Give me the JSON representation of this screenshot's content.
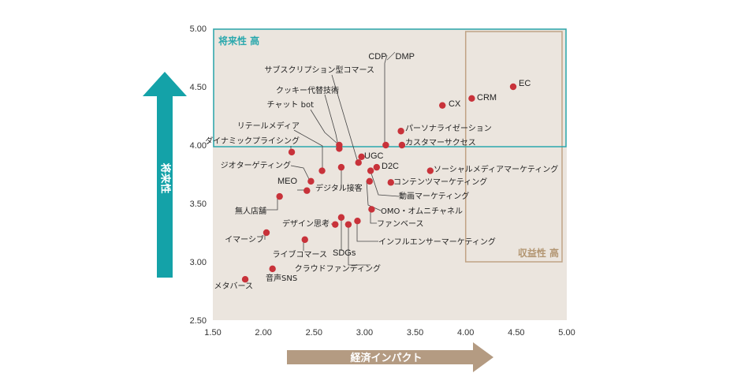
{
  "chart_data": {
    "type": "scatter",
    "xlabel": "経済インパクト",
    "ylabel": "将来性",
    "xlim": [
      1.5,
      5.0
    ],
    "ylim": [
      2.5,
      5.0
    ],
    "xticks": [
      "1.50",
      "2.00",
      "2.50",
      "3.00",
      "3.50",
      "4.00",
      "4.50",
      "5.00"
    ],
    "yticks": [
      "2.50",
      "3.00",
      "3.50",
      "4.00",
      "4.50",
      "5.00"
    ],
    "grid": false,
    "colors": {
      "point": "#c8323a",
      "plot_bg": "#ebe5de",
      "future_box": "#2aa8ad",
      "revenue_box": "#c0a385",
      "y_arrow": "#14a2a8",
      "x_arrow": "#b49b82"
    },
    "regions": [
      {
        "label": "将来性 高",
        "x_range": [
          1.5,
          5.0
        ],
        "y_range": [
          4.0,
          5.0
        ]
      },
      {
        "label": "収益性 高",
        "x_range": [
          4.0,
          5.0
        ],
        "y_range": [
          3.0,
          5.0
        ]
      }
    ],
    "points": [
      {
        "label": "EC",
        "x": 4.47,
        "y": 4.5
      },
      {
        "label": "CRM",
        "x": 4.06,
        "y": 4.4
      },
      {
        "label": "CX",
        "x": 3.77,
        "y": 4.34
      },
      {
        "label": "パーソナライゼーション",
        "x": 3.36,
        "y": 4.12
      },
      {
        "label": "カスタマーサクセス",
        "x": 3.37,
        "y": 4.0
      },
      {
        "label": "CDP／DMP",
        "x": 3.21,
        "y": 4.0
      },
      {
        "label": "サブスクリプション型コマース",
        "x": 2.94,
        "y": 3.85
      },
      {
        "label": "クッキー代替技術",
        "x": 2.75,
        "y": 3.97
      },
      {
        "label": "チャット bot",
        "x": 2.75,
        "y": 4.0
      },
      {
        "label": "UGC",
        "x": 2.97,
        "y": 3.9
      },
      {
        "label": "D2C",
        "x": 3.12,
        "y": 3.81
      },
      {
        "label": "リテールメディア",
        "x": 2.58,
        "y": 3.78
      },
      {
        "label": "ダイナミックプライシング",
        "x": 2.28,
        "y": 3.94
      },
      {
        "label": "ジオターゲティング",
        "x": 2.47,
        "y": 3.69
      },
      {
        "label": "MEO",
        "x": 2.43,
        "y": 3.61
      },
      {
        "label": "デジタル接客",
        "x": 2.77,
        "y": 3.81
      },
      {
        "label": "ソーシャルメディアマーケティング",
        "x": 3.65,
        "y": 3.78
      },
      {
        "label": "コンテンツマーケティング",
        "x": 3.26,
        "y": 3.68
      },
      {
        "label": "動画マーケティング",
        "x": 3.06,
        "y": 3.78
      },
      {
        "label": "OMO・オムニチャネル",
        "x": 3.05,
        "y": 3.69
      },
      {
        "label": "無人店舗",
        "x": 2.16,
        "y": 3.56
      },
      {
        "label": "ファンベース",
        "x": 3.07,
        "y": 3.45
      },
      {
        "label": "デザイン思考",
        "x": 2.71,
        "y": 3.32
      },
      {
        "label": "SDGs",
        "x": 2.77,
        "y": 3.38
      },
      {
        "label": "インフルエンサーマーケティング",
        "x": 2.93,
        "y": 3.35
      },
      {
        "label": "クラウドファンディング",
        "x": 2.84,
        "y": 3.32
      },
      {
        "label": "イマーシブ",
        "x": 2.03,
        "y": 3.25
      },
      {
        "label": "ライブコマース",
        "x": 2.41,
        "y": 3.19
      },
      {
        "label": "音声SNS",
        "x": 2.09,
        "y": 2.94
      },
      {
        "label": "メタバース",
        "x": 1.82,
        "y": 2.85
      }
    ]
  }
}
